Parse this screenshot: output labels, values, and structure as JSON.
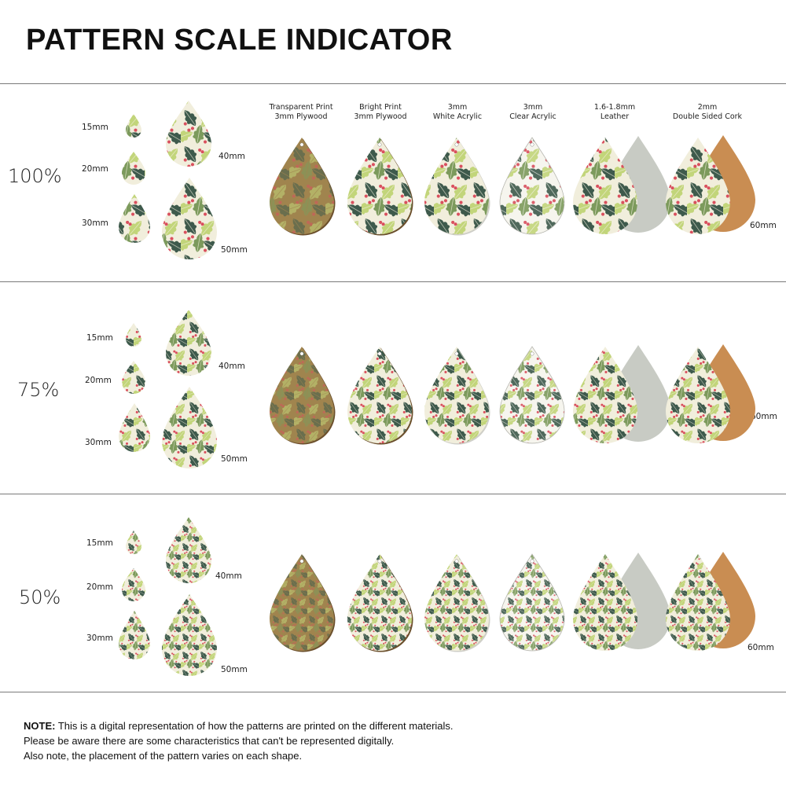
{
  "title": "PATTERN SCALE INDICATOR",
  "materials": [
    {
      "line1": "Transparent Print",
      "line2": "3mm Plywood"
    },
    {
      "line1": "Bright Print",
      "line2": "3mm Plywood"
    },
    {
      "line1": "3mm",
      "line2": "White Acrylic"
    },
    {
      "line1": "3mm",
      "line2": "Clear Acrylic"
    },
    {
      "line1": "1.6-1.8mm",
      "line2": "Leather"
    },
    {
      "line1": "2mm",
      "line2": "Double Sided Cork"
    }
  ],
  "sizes": {
    "s15": "15mm",
    "s20": "20mm",
    "s30": "30mm",
    "s40": "40mm",
    "s50": "50mm",
    "s60": "60mm"
  },
  "rows": [
    {
      "scale": "100%"
    },
    {
      "scale": "75%"
    },
    {
      "scale": "50%"
    }
  ],
  "note": {
    "label": "NOTE:",
    "line1": " This is a digital representation of how the patterns are printed on the different materials.",
    "line2": "Please be aware there are some characteristics that can't be represented digitally.",
    "line3": "Also note, the placement of the pattern varies on each shape."
  },
  "colors": {
    "cream": "#f1eedc",
    "dark_green": "#3e5a4c",
    "mid_green": "#7c9a5c",
    "light_green": "#c2d57a",
    "berry": "#d9505e",
    "plywood": "#a0844e",
    "leather_back": "#c8cbc4",
    "cork": "#c98d52"
  }
}
